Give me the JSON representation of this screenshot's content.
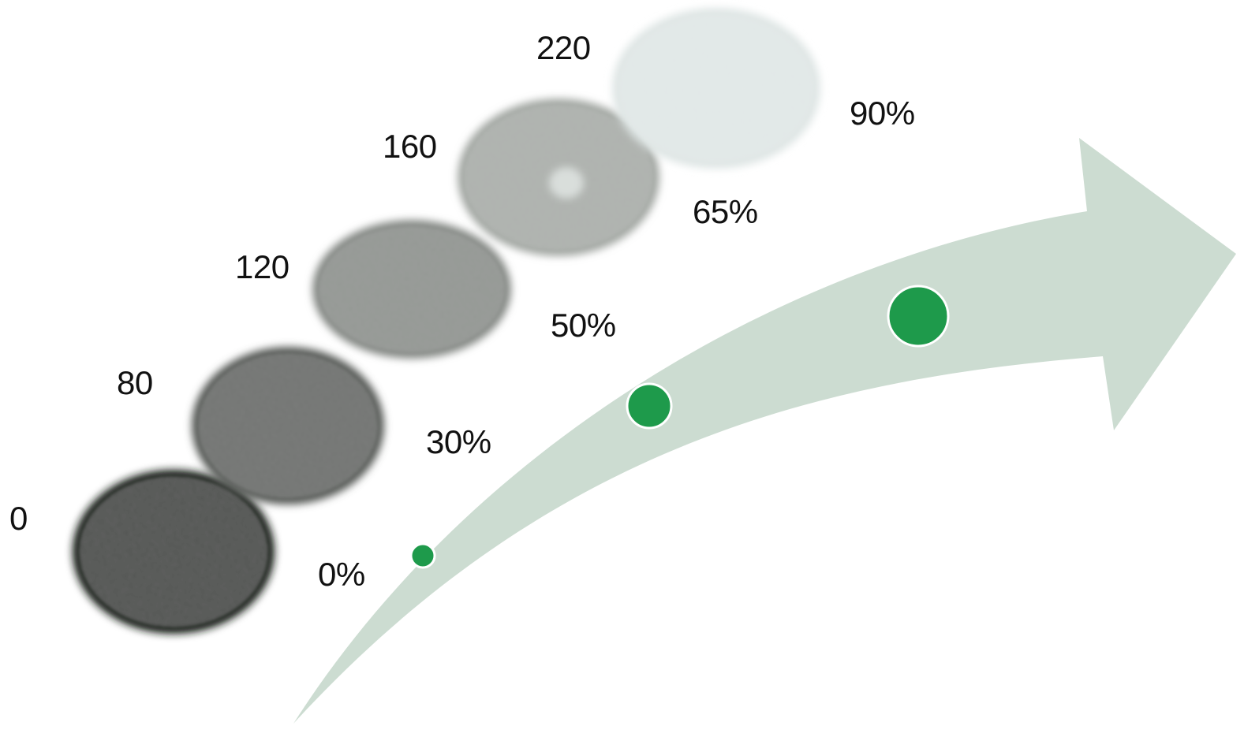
{
  "samples": [
    {
      "value_label": "0",
      "percent_label": "0%",
      "tone": "#181a18"
    },
    {
      "value_label": "80",
      "percent_label": "30%",
      "tone": "#595c59"
    },
    {
      "value_label": "120",
      "percent_label": "50%",
      "tone": "#868a86"
    },
    {
      "value_label": "160",
      "percent_label": "65%",
      "tone": "#a4a9a4"
    },
    {
      "value_label": "220",
      "percent_label": "90%",
      "tone": "#dfe6e5"
    }
  ],
  "markers": [
    {
      "level": "small"
    },
    {
      "level": "medium"
    },
    {
      "level": "large"
    }
  ],
  "colors": {
    "arrow": "#ccdcd1",
    "marker": "#1e9a4b",
    "marker_ring": "#ffffff"
  }
}
